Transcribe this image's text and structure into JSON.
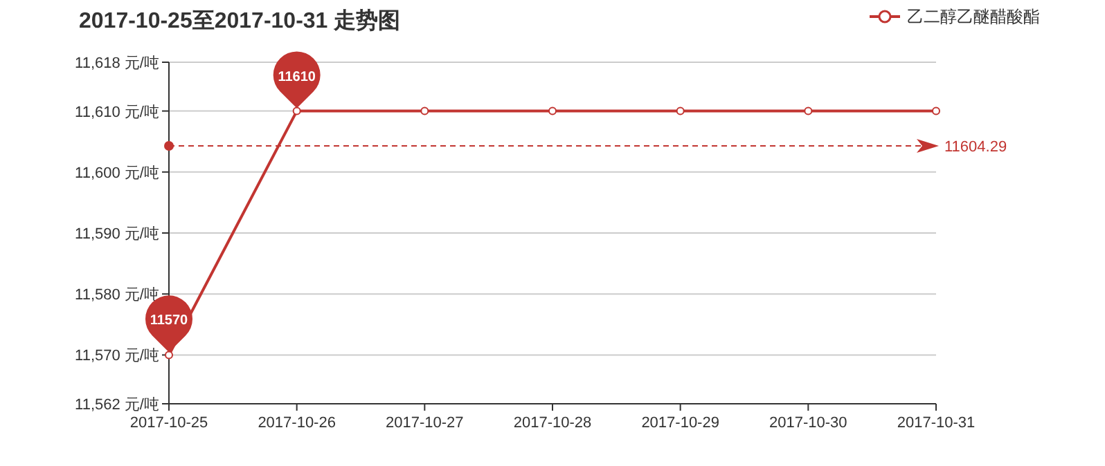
{
  "chart_data": {
    "type": "line",
    "title": "2017-10-25至2017-10-31 走势图",
    "categories": [
      "2017-10-25",
      "2017-10-26",
      "2017-10-27",
      "2017-10-28",
      "2017-10-29",
      "2017-10-30",
      "2017-10-31"
    ],
    "series": [
      {
        "name": "乙二醇乙醚醋酸酯",
        "color": "#c23531",
        "values": [
          11570,
          11610,
          11610,
          11610,
          11610,
          11610,
          11610
        ]
      }
    ],
    "ylim": [
      11562,
      11618
    ],
    "yticks": [
      {
        "value": 11562,
        "label": "11,562 元/吨"
      },
      {
        "value": 11570,
        "label": "11,570 元/吨"
      },
      {
        "value": 11580,
        "label": "11,580 元/吨"
      },
      {
        "value": 11590,
        "label": "11,590 元/吨"
      },
      {
        "value": 11600,
        "label": "11,600 元/吨"
      },
      {
        "value": 11610,
        "label": "11,610 元/吨"
      },
      {
        "value": 11618,
        "label": "11,618 元/吨"
      }
    ],
    "grid": "y",
    "legend": "top right",
    "marker": "circle",
    "line_style": "solid",
    "ref_lines": [
      {
        "axis": "y",
        "value": 11604.29,
        "label": "11604.29",
        "color": "#c23531",
        "line_style": "dashed"
      }
    ],
    "annotations": [
      {
        "text": "11610",
        "x": "2017-10-26",
        "y": 11610
      },
      {
        "text": "11570",
        "x": "2017-10-25",
        "y": 11570
      }
    ]
  }
}
